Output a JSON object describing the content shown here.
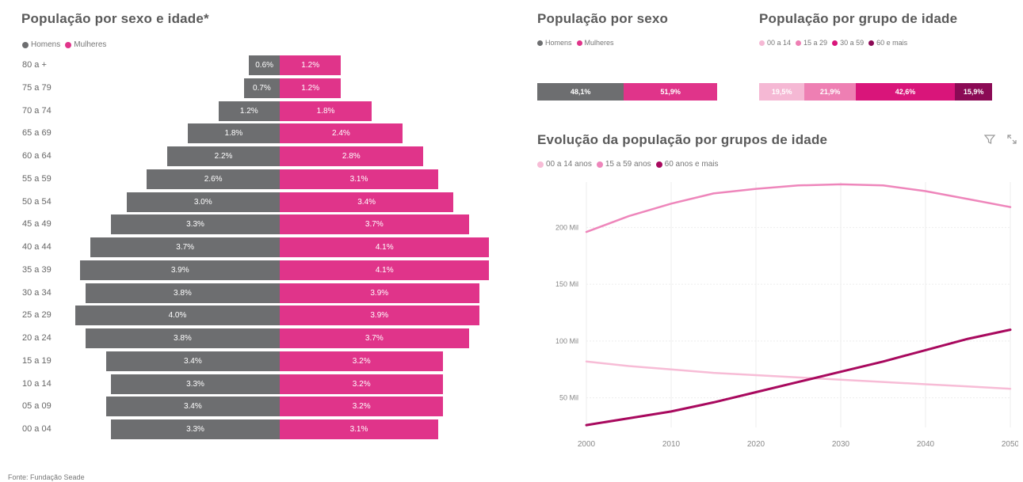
{
  "colors": {
    "homens": "#6d6e70",
    "mulheres": "#e0348a",
    "g0014": "#f5b8d4",
    "g1529": "#ee7fb3",
    "g3059": "#d9157a",
    "g60": "#8b0a55",
    "line1559": "#ee86bb",
    "line60": "#a8095e",
    "line0014": "#f7bcd6"
  },
  "pyramid": {
    "title": "População por sexo e idade*",
    "legend": {
      "homens": "Homens",
      "mulheres": "Mulheres"
    },
    "rows": [
      {
        "age": "80 a +",
        "homens": 0.6,
        "mulheres": 1.2,
        "homens_label": "0.6%",
        "mulheres_label": "1.2%"
      },
      {
        "age": "75 a 79",
        "homens": 0.7,
        "mulheres": 1.2,
        "homens_label": "0.7%",
        "mulheres_label": "1.2%"
      },
      {
        "age": "70 a 74",
        "homens": 1.2,
        "mulheres": 1.8,
        "homens_label": "1.2%",
        "mulheres_label": "1.8%"
      },
      {
        "age": "65 a 69",
        "homens": 1.8,
        "mulheres": 2.4,
        "homens_label": "1.8%",
        "mulheres_label": "2.4%"
      },
      {
        "age": "60 a 64",
        "homens": 2.2,
        "mulheres": 2.8,
        "homens_label": "2.2%",
        "mulheres_label": "2.8%"
      },
      {
        "age": "55 a 59",
        "homens": 2.6,
        "mulheres": 3.1,
        "homens_label": "2.6%",
        "mulheres_label": "3.1%"
      },
      {
        "age": "50 a 54",
        "homens": 3.0,
        "mulheres": 3.4,
        "homens_label": "3.0%",
        "mulheres_label": "3.4%"
      },
      {
        "age": "45 a 49",
        "homens": 3.3,
        "mulheres": 3.7,
        "homens_label": "3.3%",
        "mulheres_label": "3.7%"
      },
      {
        "age": "40 a 44",
        "homens": 3.7,
        "mulheres": 4.1,
        "homens_label": "3.7%",
        "mulheres_label": "4.1%"
      },
      {
        "age": "35 a 39",
        "homens": 3.9,
        "mulheres": 4.1,
        "homens_label": "3.9%",
        "mulheres_label": "4.1%"
      },
      {
        "age": "30 a 34",
        "homens": 3.8,
        "mulheres": 3.9,
        "homens_label": "3.8%",
        "mulheres_label": "3.9%"
      },
      {
        "age": "25 a 29",
        "homens": 4.0,
        "mulheres": 3.9,
        "homens_label": "4.0%",
        "mulheres_label": "3.9%"
      },
      {
        "age": "20 a 24",
        "homens": 3.8,
        "mulheres": 3.7,
        "homens_label": "3.8%",
        "mulheres_label": "3.7%"
      },
      {
        "age": "15 a 19",
        "homens": 3.4,
        "mulheres": 3.2,
        "homens_label": "3.4%",
        "mulheres_label": "3.2%"
      },
      {
        "age": "10 a 14",
        "homens": 3.3,
        "mulheres": 3.2,
        "homens_label": "3.3%",
        "mulheres_label": "3.2%"
      },
      {
        "age": "05 a 09",
        "homens": 3.4,
        "mulheres": 3.2,
        "homens_label": "3.4%",
        "mulheres_label": "3.2%"
      },
      {
        "age": "00 a 04",
        "homens": 3.3,
        "mulheres": 3.1,
        "homens_label": "3.3%",
        "mulheres_label": "3.1%"
      }
    ]
  },
  "sexo": {
    "title": "População por sexo",
    "legend": {
      "homens": "Homens",
      "mulheres": "Mulheres"
    },
    "segments": [
      {
        "name": "Homens",
        "value": 48.1,
        "label": "48,1%"
      },
      {
        "name": "Mulheres",
        "value": 51.9,
        "label": "51,9%"
      }
    ]
  },
  "grupo": {
    "title": "População por grupo de idade",
    "legend": [
      "00 a 14",
      "15 a 29",
      "30 a 59",
      "60 e mais"
    ],
    "segments": [
      {
        "name": "00 a 14",
        "value": 19.5,
        "label": "19,5%"
      },
      {
        "name": "15 a 29",
        "value": 21.9,
        "label": "21,9%"
      },
      {
        "name": "30 a 59",
        "value": 42.6,
        "label": "42,6%"
      },
      {
        "name": "60 e mais",
        "value": 15.9,
        "label": "15,9%"
      }
    ]
  },
  "evolucao": {
    "title": "Evolução da população por grupos de idade",
    "legend": [
      "00 a 14 anos",
      "15 a 59 anos",
      "60 anos e mais"
    ],
    "icons": {
      "filter": "filter-icon",
      "expand": "expand-icon"
    }
  },
  "chart_data": {
    "type": "line",
    "x": [
      2000,
      2005,
      2010,
      2015,
      2020,
      2025,
      2030,
      2035,
      2040,
      2045,
      2050
    ],
    "series": [
      {
        "name": "00 a 14 anos",
        "values": [
          82,
          78,
          75,
          72,
          70,
          68,
          66,
          64,
          62,
          60,
          58
        ]
      },
      {
        "name": "15 a 59 anos",
        "values": [
          196,
          210,
          221,
          230,
          234,
          237,
          238,
          237,
          232,
          225,
          218
        ]
      },
      {
        "name": "60 anos e mais",
        "values": [
          26,
          32,
          38,
          46,
          55,
          64,
          73,
          82,
          92,
          102,
          110
        ]
      }
    ],
    "ylim": [
      24,
      240
    ],
    "yticks": [
      50,
      100,
      150,
      200
    ],
    "ytick_labels": [
      "50 Mil",
      "100 Mil",
      "150 Mil",
      "200 Mil"
    ],
    "xticks": [
      2000,
      2010,
      2020,
      2030,
      2040,
      2050
    ],
    "xtick_labels": [
      "2000",
      "2010",
      "2020",
      "2030",
      "2040",
      "2050"
    ],
    "grid": true
  },
  "footer": "Fonte: Fundação Seade"
}
